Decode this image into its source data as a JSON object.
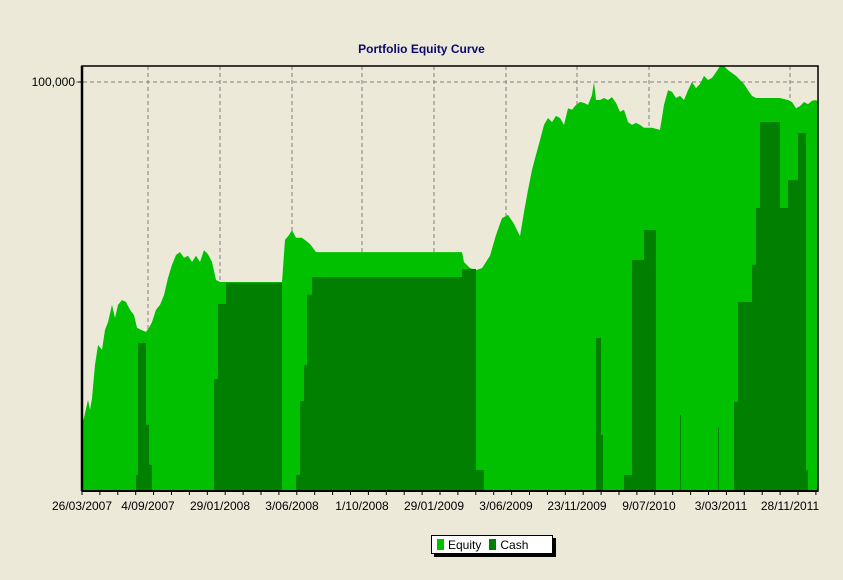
{
  "title": "Portfolio Equity Curve",
  "colors": {
    "background": "#ece9d8",
    "equity": "#00c000",
    "cash": "#007f00",
    "title": "#0a0a6e",
    "grid": "#808080"
  },
  "legend": {
    "items": [
      {
        "label": "Equity",
        "color": "#00c000"
      },
      {
        "label": "Cash",
        "color": "#007f00"
      }
    ]
  },
  "axes": {
    "y_tick_labels": [
      "100,000"
    ],
    "x_tick_labels": [
      "26/03/2007",
      "4/09/2007",
      "29/01/2008",
      "3/06/2008",
      "1/10/2008",
      "29/01/2009",
      "3/06/2009",
      "23/11/2009",
      "9/07/2010",
      "3/03/2011",
      "28/11/2011"
    ]
  },
  "chart_data": {
    "type": "area",
    "title": "Portfolio Equity Curve",
    "xlabel": "",
    "ylabel": "",
    "ylim": [
      0,
      103900
    ],
    "y_ticks": [
      100000
    ],
    "x_tick_labels": [
      "26/03/2007",
      "4/09/2007",
      "29/01/2008",
      "3/06/2008",
      "1/10/2008",
      "29/01/2009",
      "3/06/2009",
      "23/11/2009",
      "9/07/2010",
      "3/03/2011",
      "28/11/2011"
    ],
    "grid": true,
    "legend_position": "bottom-center",
    "x_note": "x values are positions along the time axis in plot pixels (0 = 26/03/2007, 708 = 28/11/2011, 736 = end)",
    "series": [
      {
        "name": "Equity",
        "color": "#00c000",
        "points": [
          [
            0,
            16200
          ],
          [
            2,
            17900
          ],
          [
            6,
            22300
          ],
          [
            8,
            19800
          ],
          [
            10,
            22700
          ],
          [
            13,
            30800
          ],
          [
            16,
            35700
          ],
          [
            20,
            34500
          ],
          [
            23,
            39400
          ],
          [
            26,
            41300
          ],
          [
            30,
            45500
          ],
          [
            33,
            42300
          ],
          [
            36,
            45500
          ],
          [
            40,
            46700
          ],
          [
            44,
            46200
          ],
          [
            48,
            44300
          ],
          [
            52,
            43000
          ],
          [
            55,
            39900
          ],
          [
            59,
            39400
          ],
          [
            64,
            38900
          ],
          [
            67,
            39900
          ],
          [
            70,
            41300
          ],
          [
            74,
            44300
          ],
          [
            78,
            45500
          ],
          [
            82,
            47900
          ],
          [
            86,
            52100
          ],
          [
            90,
            55300
          ],
          [
            94,
            57700
          ],
          [
            98,
            58400
          ],
          [
            102,
            57000
          ],
          [
            106,
            57500
          ],
          [
            110,
            56000
          ],
          [
            114,
            57500
          ],
          [
            118,
            56000
          ],
          [
            122,
            58900
          ],
          [
            126,
            57900
          ],
          [
            130,
            56000
          ],
          [
            134,
            51600
          ],
          [
            138,
            51100
          ],
          [
            144,
            51100
          ],
          [
            168,
            51100
          ],
          [
            200,
            51100
          ],
          [
            203,
            61400
          ],
          [
            207,
            62600
          ],
          [
            210,
            63800
          ],
          [
            214,
            61900
          ],
          [
            220,
            61900
          ],
          [
            228,
            60400
          ],
          [
            234,
            58400
          ],
          [
            258,
            58400
          ],
          [
            318,
            58400
          ],
          [
            380,
            58400
          ],
          [
            382,
            56000
          ],
          [
            388,
            54500
          ],
          [
            394,
            54000
          ],
          [
            400,
            54500
          ],
          [
            404,
            56000
          ],
          [
            408,
            57500
          ],
          [
            414,
            62600
          ],
          [
            420,
            66700
          ],
          [
            426,
            67500
          ],
          [
            432,
            65300
          ],
          [
            438,
            62300
          ],
          [
            442,
            68200
          ],
          [
            446,
            73600
          ],
          [
            450,
            78500
          ],
          [
            454,
            82200
          ],
          [
            458,
            85800
          ],
          [
            462,
            89500
          ],
          [
            466,
            91200
          ],
          [
            470,
            90200
          ],
          [
            474,
            91700
          ],
          [
            478,
            91200
          ],
          [
            482,
            89500
          ],
          [
            486,
            93600
          ],
          [
            490,
            93200
          ],
          [
            494,
            94400
          ],
          [
            498,
            95100
          ],
          [
            502,
            94900
          ],
          [
            506,
            94400
          ],
          [
            510,
            96800
          ],
          [
            512,
            100000
          ],
          [
            514,
            95600
          ],
          [
            518,
            95600
          ],
          [
            522,
            96100
          ],
          [
            526,
            95600
          ],
          [
            530,
            96300
          ],
          [
            534,
            94900
          ],
          [
            538,
            92700
          ],
          [
            542,
            93200
          ],
          [
            546,
            90200
          ],
          [
            550,
            89500
          ],
          [
            554,
            90000
          ],
          [
            558,
            89500
          ],
          [
            562,
            88800
          ],
          [
            566,
            88800
          ],
          [
            570,
            88800
          ],
          [
            578,
            88300
          ],
          [
            582,
            94400
          ],
          [
            586,
            98000
          ],
          [
            590,
            97600
          ],
          [
            594,
            96100
          ],
          [
            598,
            96600
          ],
          [
            602,
            95600
          ],
          [
            606,
            98000
          ],
          [
            610,
            100000
          ],
          [
            614,
            98500
          ],
          [
            618,
            99500
          ],
          [
            622,
            101500
          ],
          [
            626,
            100500
          ],
          [
            630,
            101000
          ],
          [
            634,
            102400
          ],
          [
            638,
            103900
          ],
          [
            642,
            103900
          ],
          [
            646,
            102900
          ],
          [
            650,
            102200
          ],
          [
            654,
            101500
          ],
          [
            658,
            100500
          ],
          [
            662,
            99500
          ],
          [
            666,
            98000
          ],
          [
            670,
            96600
          ],
          [
            674,
            96100
          ],
          [
            682,
            96100
          ],
          [
            698,
            96100
          ],
          [
            706,
            95600
          ],
          [
            710,
            95100
          ],
          [
            714,
            93600
          ],
          [
            718,
            94100
          ],
          [
            722,
            95100
          ],
          [
            726,
            94600
          ],
          [
            730,
            95400
          ],
          [
            734,
            95600
          ],
          [
            736,
            95100
          ]
        ]
      },
      {
        "name": "Cash",
        "color": "#007f00",
        "steps": [
          [
            54,
            56,
            3900
          ],
          [
            56,
            64,
            36200
          ],
          [
            64,
            67,
            16200
          ],
          [
            67,
            70,
            6400
          ],
          [
            132,
            136,
            27400
          ],
          [
            136,
            144,
            45700
          ],
          [
            144,
            200,
            50900
          ],
          [
            214,
            218,
            3900
          ],
          [
            218,
            222,
            22000
          ],
          [
            222,
            225,
            30800
          ],
          [
            225,
            230,
            48000
          ],
          [
            230,
            380,
            52300
          ],
          [
            380,
            384,
            54300
          ],
          [
            384,
            394,
            54300
          ],
          [
            394,
            402,
            5100
          ],
          [
            514,
            519,
            37400
          ],
          [
            519,
            521,
            13700
          ],
          [
            542,
            550,
            3900
          ],
          [
            550,
            562,
            56500
          ],
          [
            562,
            574,
            63800
          ],
          [
            598,
            599,
            18600
          ],
          [
            636,
            637,
            15600
          ],
          [
            652,
            656,
            21800
          ],
          [
            656,
            670,
            46200
          ],
          [
            670,
            674,
            55300
          ],
          [
            674,
            678,
            69200
          ],
          [
            678,
            698,
            90200
          ],
          [
            698,
            706,
            69200
          ],
          [
            706,
            716,
            76000
          ],
          [
            716,
            724,
            87500
          ],
          [
            724,
            726,
            5100
          ]
        ]
      }
    ]
  }
}
